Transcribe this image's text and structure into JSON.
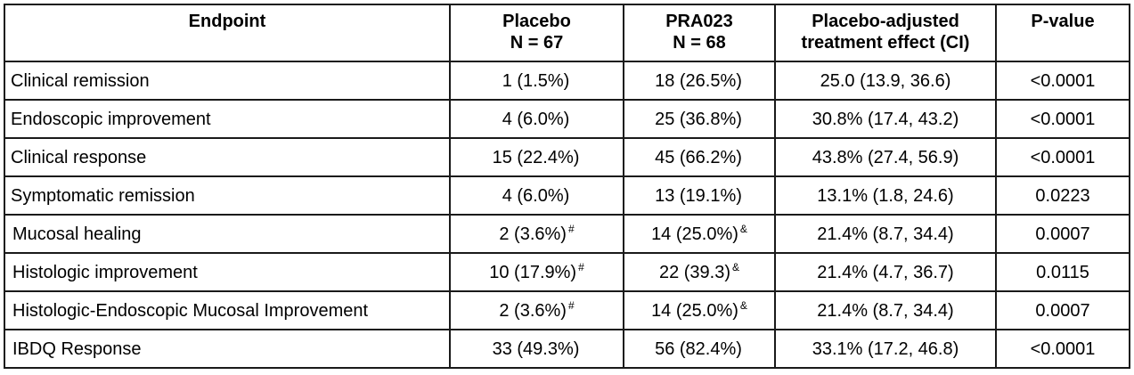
{
  "table": {
    "headers": [
      {
        "line1": "Endpoint",
        "line2": ""
      },
      {
        "line1": "Placebo",
        "line2": "N = 67"
      },
      {
        "line1": "PRA023",
        "line2": "N = 68"
      },
      {
        "line1": "Placebo-adjusted",
        "line2": "treatment effect (CI)"
      },
      {
        "line1": "P-value",
        "line2": ""
      }
    ],
    "rows": [
      {
        "endpoint": "Clinical remission",
        "placebo": "1 (1.5%)",
        "placebo_sup": "",
        "pra023": "18 (26.5%)",
        "pra023_sup": "",
        "effect": "25.0 (13.9, 36.6)",
        "p": "<0.0001"
      },
      {
        "endpoint": "Endoscopic improvement",
        "placebo": "4 (6.0%)",
        "placebo_sup": "",
        "pra023": "25 (36.8%)",
        "pra023_sup": "",
        "effect": "30.8% (17.4, 43.2)",
        "p": "<0.0001"
      },
      {
        "endpoint": "Clinical response",
        "placebo": "15 (22.4%)",
        "placebo_sup": "",
        "pra023": "45 (66.2%)",
        "pra023_sup": "",
        "effect": "43.8% (27.4, 56.9)",
        "p": "<0.0001"
      },
      {
        "endpoint": "Symptomatic remission",
        "placebo": "4 (6.0%)",
        "placebo_sup": "",
        "pra023": "13 (19.1%)",
        "pra023_sup": "",
        "effect": "13.1% (1.8, 24.6)",
        "p": "0.0223"
      },
      {
        "endpoint": "Mucosal healing",
        "placebo": "2 (3.6%)",
        "placebo_sup": "#",
        "pra023": "14 (25.0%)",
        "pra023_sup": "&",
        "effect": "21.4% (8.7, 34.4)",
        "p": "0.0007"
      },
      {
        "endpoint": "Histologic improvement",
        "placebo": "10 (17.9%)",
        "placebo_sup": "#",
        "pra023": "22 (39.3)",
        "pra023_sup": "&",
        "effect": "21.4% (4.7, 36.7)",
        "p": "0.0115"
      },
      {
        "endpoint": "Histologic-Endoscopic Mucosal Improvement",
        "placebo": "2 (3.6%)",
        "placebo_sup": "#",
        "pra023": "14 (25.0%)",
        "pra023_sup": "&",
        "effect": "21.4% (8.7, 34.4)",
        "p": "0.0007"
      },
      {
        "endpoint": "IBDQ Response",
        "placebo": "33 (49.3%)",
        "placebo_sup": "",
        "pra023": "56 (82.4%)",
        "pra023_sup": "",
        "effect": "33.1% (17.2, 46.8)",
        "p": "<0.0001"
      }
    ]
  }
}
